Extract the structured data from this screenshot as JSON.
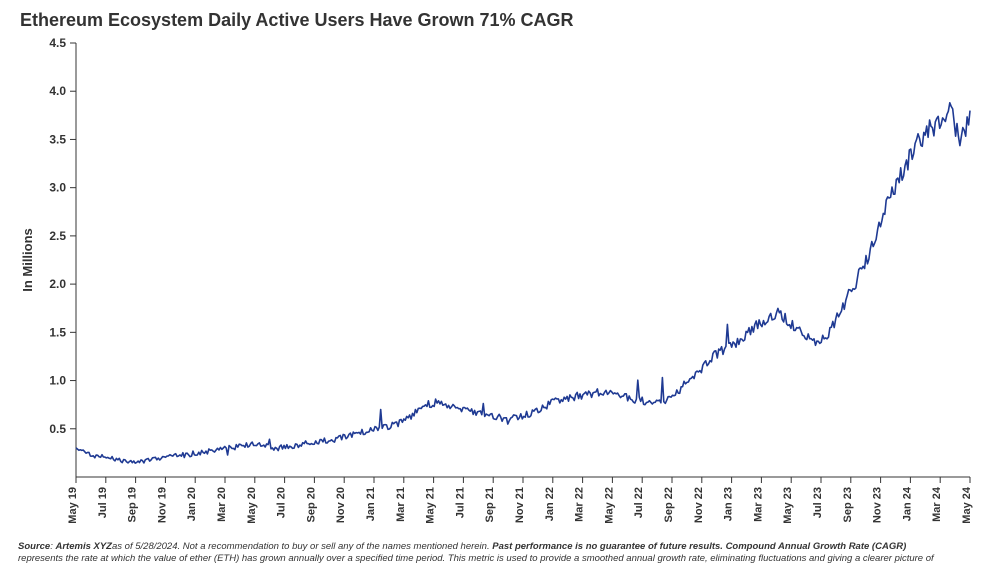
{
  "chart": {
    "type": "line",
    "title": "Ethereum Ecosystem Daily Active Users Have Grown 71% CAGR",
    "title_fontsize": 18,
    "title_color": "#333333",
    "ylabel": "In Millions",
    "ylabel_fontsize": 13,
    "background_color": "#ffffff",
    "line_color": "#1f3a93",
    "line_width": 1.6,
    "axis_color": "#343434",
    "tick_color": "#343434",
    "tick_fontsize": 12,
    "xtick_fontsize": 11,
    "grid": false,
    "ylim": [
      0,
      4.5
    ],
    "ytick_step": 0.5,
    "yticks": [
      "0.5",
      "1.0",
      "1.5",
      "2.0",
      "2.5",
      "3.0",
      "3.5",
      "4.0",
      "4.5"
    ],
    "xticks": [
      "May 19",
      "Jul 19",
      "Sep 19",
      "Nov 19",
      "Jan 20",
      "Mar 20",
      "May 20",
      "Jul 20",
      "Sep 20",
      "Nov 20",
      "Jan 21",
      "Mar 21",
      "May 21",
      "Jul 21",
      "Sep 21",
      "Nov 21",
      "Jan 22",
      "Mar 22",
      "May 22",
      "Jul 22",
      "Sep 22",
      "Nov 22",
      "Jan 23",
      "Mar 23",
      "May 23",
      "Jul 23",
      "Sep 23",
      "Nov 23",
      "Jan 24",
      "Mar 24",
      "May 24"
    ],
    "n_points": 620,
    "noise_amplitude": 0.07,
    "spike_amplitude": 0.35,
    "series_anchors_y": [
      0.28,
      0.25,
      0.22,
      0.2,
      0.18,
      0.16,
      0.15,
      0.17,
      0.19,
      0.2,
      0.22,
      0.23,
      0.25,
      0.26,
      0.28,
      0.3,
      0.31,
      0.33,
      0.34,
      0.32,
      0.3,
      0.31,
      0.33,
      0.35,
      0.36,
      0.38,
      0.4,
      0.42,
      0.45,
      0.48,
      0.5,
      0.52,
      0.55,
      0.6,
      0.7,
      0.75,
      0.78,
      0.74,
      0.7,
      0.68,
      0.66,
      0.64,
      0.62,
      0.6,
      0.62,
      0.65,
      0.7,
      0.75,
      0.8,
      0.82,
      0.84,
      0.86,
      0.88,
      0.86,
      0.84,
      0.82,
      0.8,
      0.78,
      0.76,
      0.8,
      0.9,
      1.0,
      1.1,
      1.2,
      1.3,
      1.35,
      1.4,
      1.5,
      1.6,
      1.65,
      1.7,
      1.6,
      1.5,
      1.45,
      1.4,
      1.5,
      1.7,
      1.9,
      2.1,
      2.3,
      2.6,
      2.9,
      3.1,
      3.3,
      3.5,
      3.6,
      3.7,
      3.8,
      3.5,
      3.7
    ]
  },
  "footnote": {
    "source_label": "Source",
    "source_name": "Artemis XYZ",
    "date_text": "as of 5/28/2024.",
    "disclaimer1": "Not a recommendation to buy or sell any of the names mentioned herein.",
    "bold2": "Past performance is no guarantee of future results. Compound Annual Growth Rate (CAGR)",
    "line2": "represents the rate at which the value of ether (ETH) has grown annually over a specified time period. This metric is used to provide a smoothed annual growth rate, eliminating fluctuations and giving a clearer picture of"
  }
}
